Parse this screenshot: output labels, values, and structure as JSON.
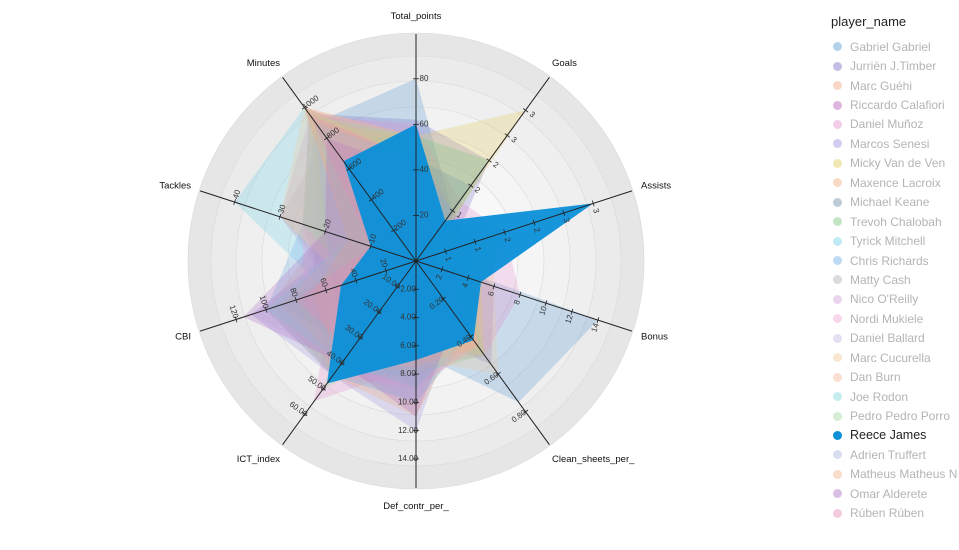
{
  "chart_data": {
    "type": "radar",
    "legend_title": "player_name",
    "legend_position": "right",
    "grid": true,
    "highlighted_series": "Reece James",
    "axes": [
      {
        "name": "Total_points",
        "max": 90,
        "ticks": [
          "20",
          "40",
          "60",
          "80"
        ],
        "tick_values": [
          20,
          40,
          60,
          80
        ]
      },
      {
        "name": "Goals",
        "max": 3.3,
        "ticks": [
          "1",
          "2",
          "2",
          "3",
          "3"
        ],
        "tick_values": [
          1,
          1.5,
          2,
          2.5,
          3
        ]
      },
      {
        "name": "Assists",
        "max": 3.3,
        "ticks": [
          "1",
          "1",
          "2",
          "2",
          "3",
          "3"
        ],
        "tick_values": [
          0.5,
          1,
          1.5,
          2,
          2.5,
          3
        ]
      },
      {
        "name": "Bonus",
        "max": 15,
        "ticks": [
          "2",
          "4",
          "6",
          "8",
          "10",
          "12",
          "14"
        ],
        "tick_values": [
          2,
          4,
          6,
          8,
          10,
          12,
          14
        ]
      },
      {
        "name": "Clean_sheets_per_",
        "max": 0.88,
        "ticks": [
          "0.20",
          "0.40",
          "0.60",
          "0.80"
        ],
        "tick_values": [
          0.2,
          0.4,
          0.6,
          0.8
        ]
      },
      {
        "name": "Def_contr_per_",
        "max": 14.5,
        "ticks": [
          "2.00",
          "4.00",
          "6.00",
          "8.00",
          "10.00",
          "12.00",
          "14.00"
        ],
        "tick_values": [
          2,
          4,
          6,
          8,
          10,
          12,
          14
        ]
      },
      {
        "name": "ICT_index",
        "max": 65,
        "ticks": [
          "10.00",
          "20.00",
          "30.00",
          "40.00",
          "50.00",
          "60.00"
        ],
        "tick_values": [
          10,
          20,
          30,
          40,
          50,
          60
        ]
      },
      {
        "name": "CBI",
        "max": 130,
        "ticks": [
          "20",
          "40",
          "60",
          "80",
          "100",
          "120"
        ],
        "tick_values": [
          20,
          40,
          60,
          80,
          100,
          120
        ]
      },
      {
        "name": "Tackles",
        "max": 43,
        "ticks": [
          "10",
          "20",
          "30",
          "40"
        ],
        "tick_values": [
          10,
          20,
          30,
          40
        ]
      },
      {
        "name": "Minutes",
        "max": 1080,
        "ticks": [
          "200",
          "400",
          "600",
          "800",
          "1000"
        ],
        "tick_values": [
          200,
          400,
          600,
          800,
          1000
        ]
      }
    ],
    "series": [
      {
        "name": "Gabriel Gabriel",
        "color": "#5b9bd5",
        "values": [
          80,
          1.0,
          0.2,
          14,
          0.75,
          6.5,
          45,
          70,
          22,
          900
        ]
      },
      {
        "name": "Jurriën J.Timber",
        "color": "#7b6fc8",
        "values": [
          62,
          2.0,
          0.6,
          6,
          0.55,
          5.0,
          40,
          60,
          25,
          960
        ]
      },
      {
        "name": "Marc Guéhi",
        "color": "#f4a582",
        "values": [
          55,
          0.6,
          0.3,
          5,
          0.45,
          9.0,
          45,
          95,
          15,
          1000
        ]
      },
      {
        "name": "Riccardo Calafiori",
        "color": "#b55bb5",
        "values": [
          50,
          1.0,
          1.0,
          3,
          0.4,
          6.0,
          35,
          50,
          20,
          700
        ]
      },
      {
        "name": "Daniel Muñoz",
        "color": "#e38fce",
        "values": [
          60,
          1.2,
          1.5,
          8,
          0.5,
          7.5,
          55,
          55,
          30,
          950
        ]
      },
      {
        "name": "Marcos Senesi",
        "color": "#9d8fe0",
        "values": [
          50,
          0.8,
          0.4,
          4,
          0.3,
          12.0,
          45,
          110,
          15,
          1000
        ]
      },
      {
        "name": "Micky Van de Ven",
        "color": "#e1c95a",
        "values": [
          55,
          3.0,
          0.2,
          5,
          0.5,
          6.0,
          45,
          80,
          12,
          900
        ]
      },
      {
        "name": "Maxence Lacroix",
        "color": "#f2b07e",
        "values": [
          45,
          0.5,
          0.3,
          4,
          0.35,
          11.0,
          45,
          100,
          20,
          1000
        ]
      },
      {
        "name": "Michael Keane",
        "color": "#6f8fa8",
        "values": [
          45,
          1.5,
          0.2,
          4,
          0.35,
          9.0,
          35,
          90,
          10,
          900
        ]
      },
      {
        "name": "Trevoh Chalobah",
        "color": "#7cc87c",
        "values": [
          55,
          2.0,
          0.3,
          4,
          0.5,
          8.0,
          45,
          70,
          15,
          800
        ]
      },
      {
        "name": "Tyrick Mitchell",
        "color": "#74d0e8",
        "values": [
          45,
          0.3,
          1.0,
          4,
          0.4,
          8.0,
          45,
          60,
          40,
          1000
        ]
      },
      {
        "name": "Chris Richards",
        "color": "#6aaee6",
        "values": [
          45,
          1.0,
          0.3,
          3,
          0.4,
          10.0,
          45,
          100,
          25,
          900
        ]
      },
      {
        "name": "Matty Cash",
        "color": "#b0b0b8",
        "values": [
          50,
          1.0,
          0.8,
          4,
          0.4,
          7.0,
          40,
          50,
          30,
          800
        ]
      },
      {
        "name": "Nico O'Reilly",
        "color": "#d3a0d8",
        "values": [
          45,
          0.8,
          0.6,
          4,
          0.4,
          5.0,
          40,
          40,
          20,
          800
        ]
      },
      {
        "name": "Nordi Mukiele",
        "color": "#f0a6d6",
        "values": [
          45,
          0.5,
          0.5,
          4,
          0.45,
          9.0,
          45,
          75,
          25,
          950
        ]
      },
      {
        "name": "Daniel Ballard",
        "color": "#c7b9e6",
        "values": [
          40,
          0.8,
          0.2,
          3,
          0.3,
          10.0,
          40,
          110,
          15,
          900
        ]
      },
      {
        "name": "Marc Cucurella",
        "color": "#f0c89a",
        "values": [
          55,
          0.5,
          1.3,
          6,
          0.6,
          7.0,
          45,
          45,
          30,
          1000
        ]
      },
      {
        "name": "Dan Burn",
        "color": "#f4b59a",
        "values": [
          50,
          0.6,
          0.3,
          4,
          0.45,
          8.0,
          40,
          90,
          15,
          1000
        ]
      },
      {
        "name": "Joe Rodon",
        "color": "#7ed6d6",
        "values": [
          45,
          0.3,
          0.2,
          3,
          0.4,
          9.0,
          40,
          100,
          15,
          900
        ]
      },
      {
        "name": "Pedro Pedro Porro",
        "color": "#9fd89f",
        "values": [
          55,
          0.8,
          1.5,
          5,
          0.4,
          6.0,
          50,
          40,
          25,
          950
        ]
      },
      {
        "name": "Reece James",
        "color": "#0a8fd8",
        "values": [
          60,
          0.8,
          3.0,
          5,
          0.42,
          7.0,
          48,
          50,
          10,
          650
        ]
      },
      {
        "name": "Adrien Truffert",
        "color": "#a9b4dc",
        "values": [
          45,
          0.5,
          0.8,
          4,
          0.4,
          7.0,
          40,
          55,
          20,
          900
        ]
      },
      {
        "name": "Matheus Matheus N",
        "color": "#f2b48a",
        "values": [
          45,
          0.5,
          0.4,
          4,
          0.45,
          7.5,
          40,
          70,
          15,
          1000
        ]
      },
      {
        "name": "Omar Alderete",
        "color": "#ae70c4",
        "values": [
          40,
          0.5,
          0.2,
          3,
          0.3,
          11.0,
          40,
          115,
          20,
          800
        ]
      },
      {
        "name": "Rúben Rúben",
        "color": "#e68ab8",
        "values": [
          45,
          0.8,
          0.2,
          3,
          0.4,
          7.0,
          35,
          80,
          10,
          950
        ]
      }
    ]
  }
}
